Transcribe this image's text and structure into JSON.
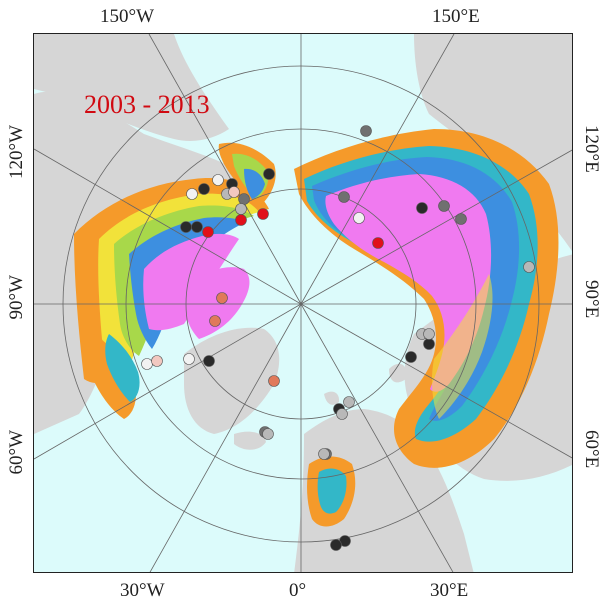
{
  "title": "2003 - 2013",
  "colors": {
    "ocean": "#dcfbfb",
    "land": "#d6d6d6",
    "magenta_zone": "#f07af0",
    "blue_zone": "#3d8fe0",
    "cyan_zone": "#33b7c8",
    "green_zone": "#a8d84a",
    "yellow_zone": "#f2e23a",
    "orange_zone": "#f59a2a",
    "grid": "#666666",
    "title_color": "#d10a12"
  },
  "labels": {
    "top_left": "150°W",
    "top_right": "150°E",
    "left_upper": "120°W",
    "left_mid": "90°W",
    "left_lower": "60°W",
    "right_upper": "120°E",
    "right_mid": "90°E",
    "right_lower": "60°E",
    "bottom_left": "30°W",
    "bottom_mid": "0°",
    "bottom_right": "30°E"
  },
  "stations": {
    "black": "#2a2a2a",
    "dark_gray": "#707070",
    "light_gray": "#b8b8b8",
    "white": "#f2f2f2",
    "pink": "#f2c8c0",
    "salmon": "#e0795a",
    "red": "#e0101a"
  }
}
